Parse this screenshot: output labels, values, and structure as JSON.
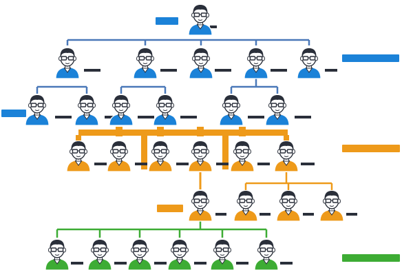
{
  "diagram": {
    "kind": "org-chart",
    "colors": {
      "blue": "#1b82d8",
      "orange": "#ee9a1a",
      "green": "#3dac34",
      "skin": "#ffffff",
      "hair": "#2a2f3a",
      "connector_blue": "#4a78b8",
      "connector_orange": "#ee9a1a",
      "connector_green": "#3dac34",
      "label_blue": "#1b82d8",
      "label_orange": "#ee9a1a",
      "label_green": "#3dac34"
    },
    "levels": [
      {
        "name": "level-1",
        "color": "blue",
        "count": 1
      },
      {
        "name": "level-2",
        "color": "blue",
        "count": 5
      },
      {
        "name": "level-3",
        "color": "blue",
        "count": 6
      },
      {
        "name": "level-4",
        "color": "orange",
        "count": 6
      },
      {
        "name": "level-5",
        "color": "orange",
        "count": 4
      },
      {
        "name": "level-6",
        "color": "green",
        "count": 6
      }
    ],
    "labels": [
      {
        "id": "label-top",
        "color": "blue"
      },
      {
        "id": "label-managers",
        "color": "blue"
      },
      {
        "id": "label-left",
        "color": "blue"
      },
      {
        "id": "label-orange-right",
        "color": "orange"
      },
      {
        "id": "label-orange-left",
        "color": "orange"
      },
      {
        "id": "label-green",
        "color": "green"
      }
    ]
  }
}
